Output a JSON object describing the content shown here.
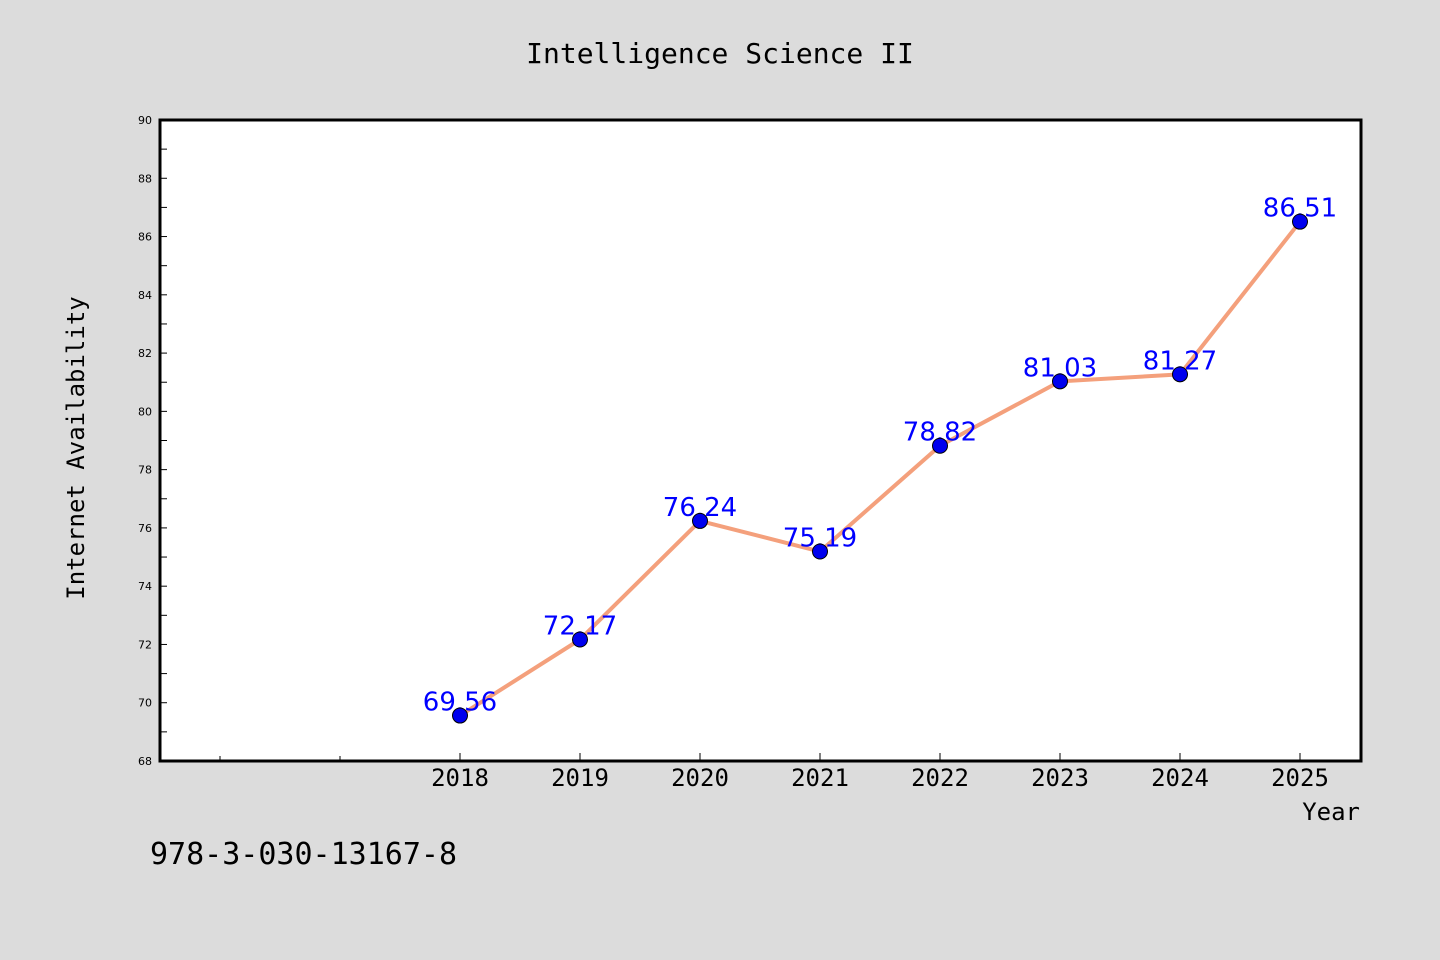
{
  "footer_text": "978-3-030-13167-8",
  "colors": {
    "background": "#dcdcdc",
    "plot_bg": "#ffffff",
    "line": "#f4a07c",
    "marker": "#0000ee",
    "label": "#0000ff"
  },
  "chart_data": {
    "type": "line",
    "title": "Intelligence Science II",
    "xlabel": "Year",
    "ylabel": "Internet Availability",
    "x": [
      "2018",
      "2019",
      "2020",
      "2021",
      "2022",
      "2023",
      "2024",
      "2025"
    ],
    "series": [
      {
        "values": [
          69.56,
          72.17,
          76.24,
          75.19,
          78.82,
          81.03,
          81.27,
          86.51
        ]
      }
    ],
    "data_labels": [
      "69.56",
      "72.17",
      "76.24",
      "75.19",
      "78.82",
      "81.03",
      "81.27",
      "86.51"
    ],
    "yticks": [
      "68",
      "70",
      "72",
      "74",
      "76",
      "78",
      "80",
      "82",
      "84",
      "86",
      "88",
      "90"
    ],
    "ylim": [
      68,
      90
    ],
    "grid": false,
    "legend": "none"
  }
}
